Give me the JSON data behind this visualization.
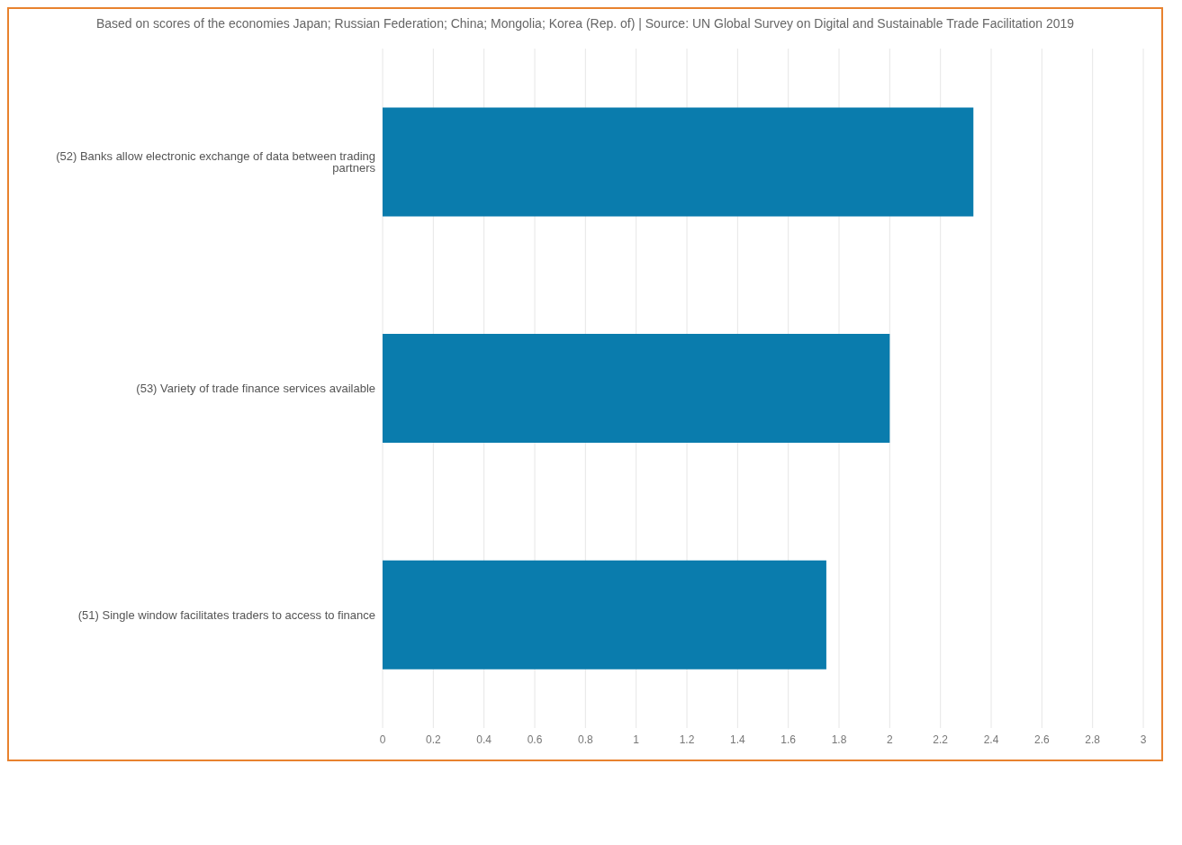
{
  "chart_data": {
    "type": "bar",
    "orientation": "horizontal",
    "title": "Based on scores of the economies Japan; Russian Federation; China; Mongolia; Korea (Rep. of) | Source: UN Global Survey on Digital and Sustainable Trade Facilitation 2019",
    "categories": [
      "(52) Banks allow electronic exchange of data between trading partners",
      "(53) Variety of trade finance services available",
      "(51) Single window facilitates traders to access to finance"
    ],
    "values": [
      2.33,
      2.0,
      1.75
    ],
    "color": "#0a7cad",
    "xlim": [
      0,
      3
    ],
    "xticks": [
      0,
      0.2,
      0.4,
      0.6,
      0.8,
      1,
      1.2,
      1.4,
      1.6,
      1.8,
      2,
      2.2,
      2.4,
      2.6,
      2.8,
      3
    ],
    "grid": "x"
  }
}
